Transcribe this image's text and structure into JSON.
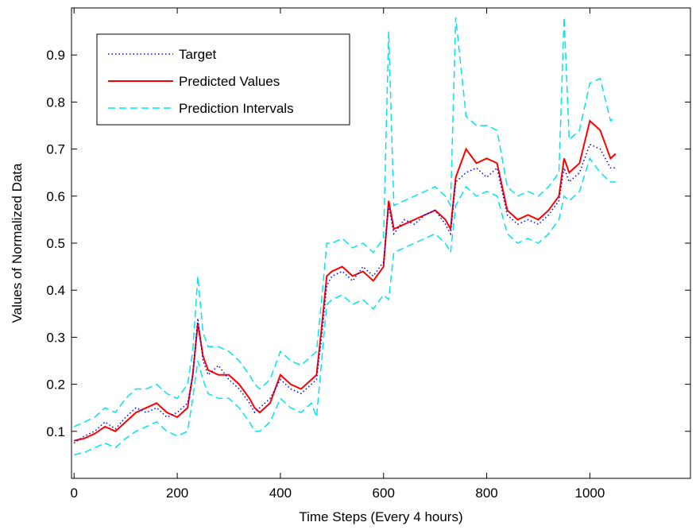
{
  "chart_data": {
    "type": "line",
    "xlabel": "Time Steps (Every 4 hours)",
    "ylabel": "Values of Normalized Data",
    "xlim": [
      -5,
      1195
    ],
    "ylim": [
      0,
      1.0
    ],
    "x_ticks": [
      0,
      200,
      400,
      600,
      800,
      1000
    ],
    "y_ticks": [
      0.1,
      0.2,
      0.3,
      0.4,
      0.5,
      0.6,
      0.7,
      0.8,
      0.9
    ],
    "x_tick_labels": [
      "0",
      "200",
      "400",
      "600",
      "800",
      "1000"
    ],
    "y_tick_labels": [
      "0.1",
      "0.2",
      "0.3",
      "0.4",
      "0.5",
      "0.6",
      "0.7",
      "0.8",
      "0.9"
    ],
    "grid": false,
    "legend_position": "top-left",
    "colors": {
      "target": "#0000ff",
      "predicted": "#ff0000",
      "interval": "#00e5ee"
    },
    "x": [
      0,
      20,
      40,
      60,
      80,
      100,
      120,
      140,
      160,
      180,
      200,
      220,
      230,
      240,
      250,
      260,
      280,
      300,
      320,
      340,
      350,
      360,
      380,
      400,
      420,
      440,
      460,
      470,
      480,
      490,
      500,
      520,
      540,
      560,
      580,
      600,
      610,
      620,
      640,
      660,
      680,
      700,
      720,
      730,
      740,
      760,
      780,
      800,
      820,
      840,
      850,
      860,
      880,
      900,
      920,
      940,
      950,
      960,
      980,
      1000,
      1020,
      1040,
      1050
    ],
    "series": [
      {
        "name": "Target",
        "style": "dotted",
        "values": [
          0.075,
          0.09,
          0.1,
          0.12,
          0.105,
          0.13,
          0.15,
          0.14,
          0.15,
          0.13,
          0.14,
          0.16,
          0.22,
          0.34,
          0.25,
          0.22,
          0.24,
          0.21,
          0.19,
          0.16,
          0.14,
          0.15,
          0.17,
          0.21,
          0.19,
          0.18,
          0.2,
          0.21,
          0.3,
          0.41,
          0.43,
          0.44,
          0.42,
          0.45,
          0.43,
          0.46,
          0.58,
          0.52,
          0.55,
          0.54,
          0.56,
          0.57,
          0.54,
          0.52,
          0.63,
          0.65,
          0.66,
          0.64,
          0.66,
          0.56,
          0.55,
          0.54,
          0.55,
          0.54,
          0.56,
          0.59,
          0.66,
          0.63,
          0.65,
          0.71,
          0.7,
          0.66,
          0.66
        ]
      },
      {
        "name": "Predicted Values",
        "style": "solid",
        "values": [
          0.08,
          0.085,
          0.095,
          0.11,
          0.1,
          0.12,
          0.14,
          0.15,
          0.16,
          0.14,
          0.13,
          0.15,
          0.22,
          0.33,
          0.26,
          0.23,
          0.22,
          0.22,
          0.2,
          0.17,
          0.15,
          0.14,
          0.16,
          0.22,
          0.2,
          0.19,
          0.21,
          0.22,
          0.32,
          0.43,
          0.44,
          0.45,
          0.43,
          0.44,
          0.42,
          0.45,
          0.59,
          0.53,
          0.54,
          0.55,
          0.56,
          0.57,
          0.55,
          0.53,
          0.64,
          0.7,
          0.67,
          0.68,
          0.67,
          0.57,
          0.56,
          0.55,
          0.56,
          0.55,
          0.57,
          0.6,
          0.68,
          0.65,
          0.67,
          0.76,
          0.74,
          0.68,
          0.69
        ]
      },
      {
        "name": "Prediction Intervals",
        "style": "dashed",
        "values": [
          0.11,
          0.12,
          0.13,
          0.15,
          0.14,
          0.17,
          0.19,
          0.19,
          0.2,
          0.18,
          0.17,
          0.2,
          0.27,
          0.43,
          0.31,
          0.28,
          0.28,
          0.27,
          0.25,
          0.22,
          0.2,
          0.19,
          0.21,
          0.27,
          0.25,
          0.24,
          0.26,
          0.27,
          0.38,
          0.5,
          0.5,
          0.51,
          0.49,
          0.5,
          0.48,
          0.51,
          0.95,
          0.58,
          0.59,
          0.6,
          0.61,
          0.62,
          0.6,
          0.58,
          0.98,
          0.77,
          0.75,
          0.75,
          0.74,
          0.62,
          0.61,
          0.6,
          0.61,
          0.6,
          0.62,
          0.65,
          0.98,
          0.72,
          0.74,
          0.84,
          0.85,
          0.76,
          0.77
        ]
      },
      {
        "name": "Prediction Intervals (lower)",
        "style": "dashed",
        "values": [
          0.05,
          0.055,
          0.065,
          0.075,
          0.065,
          0.085,
          0.1,
          0.11,
          0.12,
          0.1,
          0.09,
          0.1,
          0.17,
          0.25,
          0.21,
          0.18,
          0.17,
          0.17,
          0.15,
          0.12,
          0.1,
          0.1,
          0.12,
          0.17,
          0.15,
          0.14,
          0.16,
          0.13,
          0.25,
          0.37,
          0.38,
          0.39,
          0.37,
          0.38,
          0.36,
          0.39,
          0.38,
          0.48,
          0.49,
          0.5,
          0.51,
          0.52,
          0.5,
          0.48,
          0.58,
          0.62,
          0.6,
          0.61,
          0.6,
          0.52,
          0.51,
          0.5,
          0.51,
          0.5,
          0.52,
          0.55,
          0.6,
          0.59,
          0.61,
          0.68,
          0.65,
          0.63,
          0.63
        ]
      }
    ],
    "legend": [
      {
        "label": "Target",
        "style": "dotted",
        "color": "#0000ff"
      },
      {
        "label": "Predicted Values",
        "style": "solid",
        "color": "#ff0000"
      },
      {
        "label": "Prediction Intervals",
        "style": "dashed",
        "color": "#00e5ee"
      }
    ]
  }
}
